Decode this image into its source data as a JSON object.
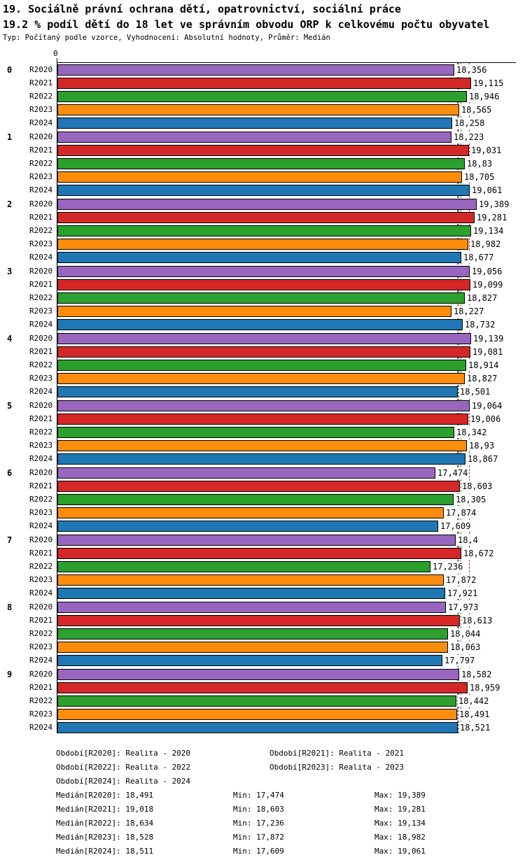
{
  "header": {
    "title": "19. Sociálně právní ochrana dětí, opatrovnictví, sociální práce",
    "subtitle": "19.2 % podíl dětí do 18 let ve správním obvodu ORP k celkovému počtu obyvatel",
    "meta": "Typ: Počítaný podle vzorce, Vyhodnocení: Absolutní hodnoty, Průměr: Medián"
  },
  "chart_data": {
    "type": "bar",
    "orientation": "horizontal",
    "title": "19.2 % podíl dětí do 18 let ve správním obvodu ORP k celkovému počtu obyvatel",
    "xlabel": "",
    "ylabel": "",
    "xlim": [
      0,
      21.2
    ],
    "axis_zero_label": "0",
    "grid": false,
    "legend_position": "bottom",
    "categories": [
      "0",
      "1",
      "2",
      "3",
      "4",
      "5",
      "6",
      "7",
      "8",
      "9"
    ],
    "series_labels": [
      "R2020",
      "R2021",
      "R2022",
      "R2023",
      "R2024"
    ],
    "series_colors": [
      "#9966BF",
      "#D62728",
      "#2CA02C",
      "#FC8D0D",
      "#1F77B4"
    ],
    "groups": [
      {
        "label": "0",
        "values": [
          18.356,
          19.115,
          18.946,
          18.565,
          18.258
        ]
      },
      {
        "label": "1",
        "values": [
          18.223,
          19.031,
          18.83,
          18.705,
          19.061
        ]
      },
      {
        "label": "2",
        "values": [
          19.389,
          19.281,
          19.134,
          18.982,
          18.677
        ]
      },
      {
        "label": "3",
        "values": [
          19.056,
          19.099,
          18.827,
          18.227,
          18.732
        ]
      },
      {
        "label": "4",
        "values": [
          19.139,
          19.081,
          18.914,
          18.827,
          18.501
        ]
      },
      {
        "label": "5",
        "values": [
          19.064,
          19.006,
          18.342,
          18.93,
          18.867
        ]
      },
      {
        "label": "6",
        "values": [
          17.474,
          18.603,
          18.305,
          17.874,
          17.609
        ]
      },
      {
        "label": "7",
        "values": [
          18.4,
          18.672,
          17.236,
          17.872,
          17.921
        ]
      },
      {
        "label": "8",
        "values": [
          17.973,
          18.613,
          18.044,
          18.063,
          17.797
        ]
      },
      {
        "label": "9",
        "values": [
          18.582,
          18.959,
          18.442,
          18.491,
          18.521
        ]
      }
    ],
    "median_lines": [
      {
        "series": "R2020",
        "value": 18.491,
        "color": "#9966BF"
      },
      {
        "series": "R2021",
        "value": 19.018,
        "color": "#D62728"
      },
      {
        "series": "R2022",
        "value": 18.634,
        "color": "#2CA02C"
      },
      {
        "series": "R2023",
        "value": 18.528,
        "color": "#FC8D0D"
      },
      {
        "series": "R2024",
        "value": 18.511,
        "color": "#1F77B4"
      }
    ],
    "stats": {
      "medians": [
        18.491,
        19.018,
        18.634,
        18.528,
        18.511
      ],
      "mins": [
        17.474,
        18.603,
        17.236,
        17.872,
        17.609
      ],
      "maxes": [
        19.389,
        19.281,
        19.134,
        18.982,
        19.061
      ]
    }
  },
  "legend": {
    "period_rows": [
      [
        "Období[R2020]: Realita - 2020",
        "Období[R2021]: Realita - 2021"
      ],
      [
        "Období[R2022]: Realita - 2022",
        "Období[R2023]: Realita - 2023"
      ],
      [
        "Období[R2024]: Realita - 2024"
      ]
    ],
    "stat_rows": [
      [
        "Medián[R2020]: 18,491",
        "Min: 17,474",
        "Max: 19,389"
      ],
      [
        "Medián[R2021]: 19,018",
        "Min: 18,603",
        "Max: 19,281"
      ],
      [
        "Medián[R2022]: 18,634",
        "Min: 17,236",
        "Max: 19,134"
      ],
      [
        "Medián[R2023]: 18,528",
        "Min: 17,872",
        "Max: 18,982"
      ],
      [
        "Medián[R2024]: 18,511",
        "Min: 17,609",
        "Max: 19,061"
      ]
    ]
  }
}
